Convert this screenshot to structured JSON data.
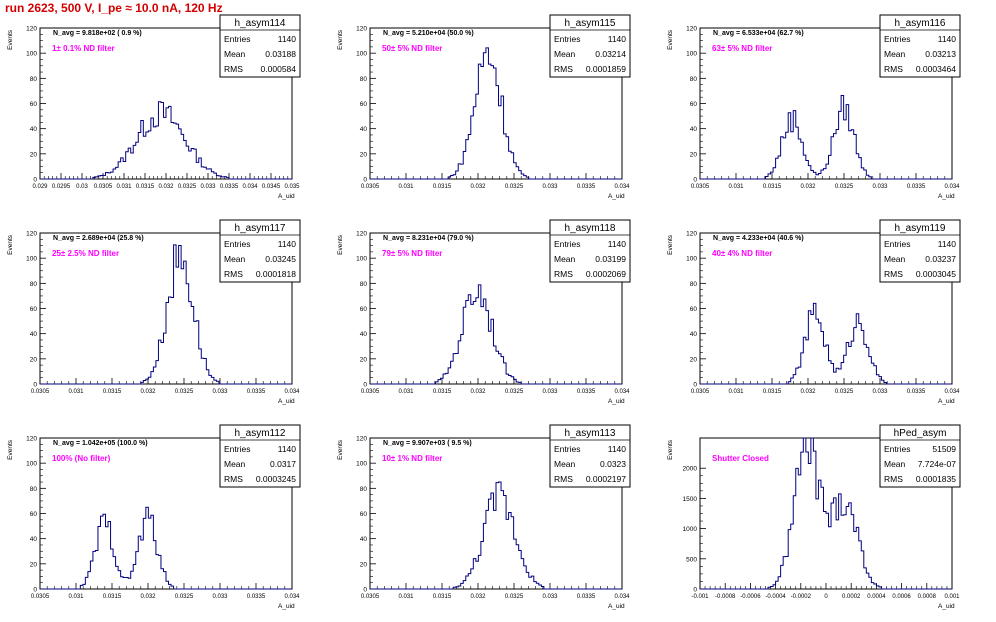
{
  "run_title": "run 2623,   500 V, I_pe ≈ 10.0 nA, 120 Hz",
  "stats_labels": {
    "entries": "Entries",
    "mean": "Mean",
    "rms": "RMS"
  },
  "colors": {
    "title": "#d40000",
    "annotation": "#ff00ff",
    "histogram": "#00007f",
    "axis": "#000000"
  },
  "chart_data": [
    {
      "type": "histogram",
      "name": "h_asym114",
      "navg": "N_avg = 9.818e+02 ( 0.9 %)",
      "filter_label": "1± 0.1% ND filter",
      "entries": "1140",
      "mean": "0.03188",
      "rms": "0.000584",
      "xlabel": "A_uid",
      "ylabel": "Events",
      "xlim": [
        0.029,
        0.035
      ],
      "ylim": [
        0,
        120
      ],
      "xticks": [
        "0.029",
        "0.0295",
        "0.03",
        "0.0305",
        "0.031",
        "0.0315",
        "0.032",
        "0.0325",
        "0.033",
        "0.0335",
        "0.034",
        "0.0345",
        "0.035"
      ],
      "xtick_values": [
        0.029,
        0.0295,
        0.03,
        0.0305,
        0.031,
        0.0315,
        0.032,
        0.0325,
        0.033,
        0.0335,
        0.034,
        0.0345,
        0.035
      ],
      "yticks": [
        0,
        20,
        40,
        60,
        80,
        100,
        120
      ],
      "peaks": [
        {
          "center": 0.03188,
          "sigma": 0.00058,
          "height": 52
        }
      ]
    },
    {
      "type": "histogram",
      "name": "h_asym115",
      "navg": "N_avg = 5.210e+04 (50.0 %)",
      "filter_label": "50± 5% ND filter",
      "entries": "1140",
      "mean": "0.03214",
      "rms": "0.0001859",
      "xlabel": "A_uid",
      "ylabel": "Events",
      "xlim": [
        0.0305,
        0.034
      ],
      "ylim": [
        0,
        120
      ],
      "xticks": [
        "0.0305",
        "0.031",
        "0.0315",
        "0.032",
        "0.0325",
        "0.033",
        "0.0335",
        "0.034"
      ],
      "xtick_values": [
        0.0305,
        0.031,
        0.0315,
        0.032,
        0.0325,
        0.033,
        0.0335,
        0.034
      ],
      "yticks": [
        0,
        20,
        40,
        60,
        80,
        100,
        120
      ],
      "peaks": [
        {
          "center": 0.03214,
          "sigma": 0.000186,
          "height": 100
        }
      ]
    },
    {
      "type": "histogram",
      "name": "h_asym116",
      "navg": "N_avg = 6.533e+04 (62.7 %)",
      "filter_label": "63± 5% ND filter",
      "entries": "1140",
      "mean": "0.03213",
      "rms": "0.0003464",
      "xlabel": "A_uid",
      "ylabel": "Events",
      "xlim": [
        0.0305,
        0.034
      ],
      "ylim": [
        0,
        120
      ],
      "xticks": [
        "0.0305",
        "0.031",
        "0.0315",
        "0.032",
        "0.0325",
        "0.033",
        "0.0335",
        "0.034"
      ],
      "xtick_values": [
        0.0305,
        0.031,
        0.0315,
        0.032,
        0.0325,
        0.033,
        0.0335,
        0.034
      ],
      "yticks": [
        0,
        20,
        40,
        60,
        80,
        100,
        120
      ],
      "peaks": [
        {
          "center": 0.03178,
          "sigma": 0.00014,
          "height": 48
        },
        {
          "center": 0.0325,
          "sigma": 0.00014,
          "height": 56
        }
      ]
    },
    {
      "type": "histogram",
      "name": "h_asym117",
      "navg": "N_avg = 2.689e+04 (25.8 %)",
      "filter_label": "25± 2.5% ND filter",
      "entries": "1140",
      "mean": "0.03245",
      "rms": "0.0001818",
      "xlabel": "A_uid",
      "ylabel": "Events",
      "xlim": [
        0.0305,
        0.034
      ],
      "ylim": [
        0,
        120
      ],
      "xticks": [
        "0.0305",
        "0.031",
        "0.0315",
        "0.032",
        "0.0325",
        "0.033",
        "0.0335",
        "0.034"
      ],
      "xtick_values": [
        0.0305,
        0.031,
        0.0315,
        0.032,
        0.0325,
        0.033,
        0.0335,
        0.034
      ],
      "yticks": [
        0,
        20,
        40,
        60,
        80,
        100,
        120
      ],
      "peaks": [
        {
          "center": 0.03245,
          "sigma": 0.000182,
          "height": 102
        }
      ]
    },
    {
      "type": "histogram",
      "name": "h_asym118",
      "navg": "N_avg = 8.231e+04 (79.0 %)",
      "filter_label": "79± 5% ND filter",
      "entries": "1140",
      "mean": "0.03199",
      "rms": "0.0002069",
      "xlabel": "A_uid",
      "ylabel": "Events",
      "xlim": [
        0.0305,
        0.034
      ],
      "ylim": [
        0,
        120
      ],
      "xticks": [
        "0.0305",
        "0.031",
        "0.0315",
        "0.032",
        "0.0325",
        "0.033",
        "0.0335",
        "0.034"
      ],
      "xtick_values": [
        0.0305,
        0.031,
        0.0315,
        0.032,
        0.0325,
        0.033,
        0.0335,
        0.034
      ],
      "yticks": [
        0,
        20,
        40,
        60,
        80,
        100,
        120
      ],
      "peaks": [
        {
          "center": 0.03199,
          "sigma": 0.000207,
          "height": 76
        }
      ]
    },
    {
      "type": "histogram",
      "name": "h_asym119",
      "navg": "N_avg = 4.233e+04 (40.6 %)",
      "filter_label": "40± 4% ND filter",
      "entries": "1140",
      "mean": "0.03237",
      "rms": "0.0003045",
      "xlabel": "A_uid",
      "ylabel": "Events",
      "xlim": [
        0.0305,
        0.034
      ],
      "ylim": [
        0,
        120
      ],
      "xticks": [
        "0.0305",
        "0.031",
        "0.0315",
        "0.032",
        "0.0325",
        "0.033",
        "0.0335",
        "0.034"
      ],
      "xtick_values": [
        0.0305,
        0.031,
        0.0315,
        0.032,
        0.0325,
        0.033,
        0.0335,
        0.034
      ],
      "yticks": [
        0,
        20,
        40,
        60,
        80,
        100,
        120
      ],
      "peaks": [
        {
          "center": 0.0321,
          "sigma": 0.00014,
          "height": 56
        },
        {
          "center": 0.0327,
          "sigma": 0.00014,
          "height": 50
        }
      ]
    },
    {
      "type": "histogram",
      "name": "h_asym112",
      "navg": "N_avg = 1.042e+05 (100.0 %)",
      "filter_label": "100% (No filter)",
      "entries": "1140",
      "mean": "0.0317",
      "rms": "0.0003245",
      "xlabel": "A_uid",
      "ylabel": "Events",
      "xlim": [
        0.0305,
        0.034
      ],
      "ylim": [
        0,
        120
      ],
      "xticks": [
        "0.0305",
        "0.031",
        "0.0315",
        "0.032",
        "0.0325",
        "0.033",
        "0.0335",
        "0.034"
      ],
      "xtick_values": [
        0.0305,
        0.031,
        0.0315,
        0.032,
        0.0325,
        0.033,
        0.0335,
        0.034
      ],
      "yticks": [
        0,
        20,
        40,
        60,
        80,
        100,
        120
      ],
      "peaks": [
        {
          "center": 0.0314,
          "sigma": 0.00013,
          "height": 52
        },
        {
          "center": 0.032,
          "sigma": 0.00013,
          "height": 56
        }
      ]
    },
    {
      "type": "histogram",
      "name": "h_asym113",
      "navg": "N_avg = 9.907e+03 ( 9.5 %)",
      "filter_label": "10± 1% ND filter",
      "entries": "1140",
      "mean": "0.0323",
      "rms": "0.0002197",
      "xlabel": "A_uid",
      "ylabel": "Events",
      "xlim": [
        0.0305,
        0.034
      ],
      "ylim": [
        0,
        120
      ],
      "xticks": [
        "0.0305",
        "0.031",
        "0.0315",
        "0.032",
        "0.0325",
        "0.033",
        "0.0335",
        "0.034"
      ],
      "xtick_values": [
        0.0305,
        0.031,
        0.0315,
        0.032,
        0.0325,
        0.033,
        0.0335,
        0.034
      ],
      "yticks": [
        0,
        20,
        40,
        60,
        80,
        100,
        120
      ],
      "peaks": [
        {
          "center": 0.0323,
          "sigma": 0.00022,
          "height": 74
        }
      ]
    },
    {
      "type": "histogram",
      "name": "hPed_asym",
      "navg": "",
      "filter_label": "Shutter Closed",
      "entries": "51509",
      "mean": "7.724e-07",
      "rms": "0.0001835",
      "xlabel": "A_uid",
      "ylabel": "Events",
      "xlim": [
        -0.001,
        0.001
      ],
      "ylim": [
        0,
        2500
      ],
      "xticks": [
        "-0.001",
        "-0.0008",
        "-0.0006",
        "-0.0004",
        "-0.0002",
        "0",
        "0.0002",
        "0.0004",
        "0.0006",
        "0.0008",
        "0.001"
      ],
      "xtick_values": [
        -0.001,
        -0.0008,
        -0.0006,
        -0.0004,
        -0.0002,
        0,
        0.0002,
        0.0004,
        0.0006,
        0.0008,
        0.001
      ],
      "yticks": [
        0,
        500,
        1000,
        1500,
        2000
      ],
      "peaks": [
        {
          "center": -0.00015,
          "sigma": 0.0001,
          "height": 2380
        },
        {
          "center": 0.00015,
          "sigma": 0.0001,
          "height": 1500
        }
      ]
    }
  ]
}
